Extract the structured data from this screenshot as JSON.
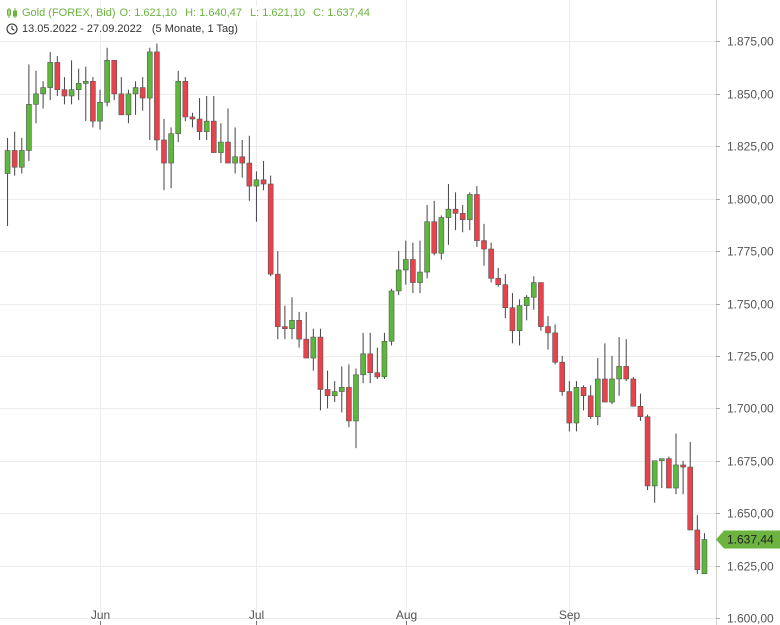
{
  "header": {
    "instrument": "Gold (FOREX, Bid)",
    "open": "O: 1.621,10",
    "high": "H: 1.640,47",
    "low": "L: 1.621,10",
    "close": "C: 1.637,44",
    "range": "13.05.2022 - 27.09.2022",
    "interval": "(5 Monate, 1 Tag)",
    "accent": "#6cb33f"
  },
  "chart_data": {
    "type": "candlestick",
    "title": "Gold (FOREX, Bid)",
    "colors": {
      "up": "#5cb83a",
      "down": "#e8434c",
      "last_price_marker": "#6cb33f",
      "grid": "#ececec",
      "wick": "#444444"
    },
    "ylim": [
      1600,
      1890
    ],
    "y_ticks": [
      1600,
      1625,
      1650,
      1675,
      1700,
      1725,
      1750,
      1775,
      1800,
      1825,
      1850,
      1875
    ],
    "y_tick_labels": [
      "1.600,00",
      "1.625,00",
      "1.650,00",
      "1.675,00",
      "1.700,00",
      "1.725,00",
      "1.750,00",
      "1.775,00",
      "1.800,00",
      "1.825,00",
      "1.850,00",
      "1.875,00"
    ],
    "x_month_labels": [
      {
        "label": "Jun",
        "index": 13
      },
      {
        "label": "Jul",
        "index": 35
      },
      {
        "label": "Aug",
        "index": 56
      },
      {
        "label": "Sep",
        "index": 79
      }
    ],
    "grid": true,
    "last_price": 1637.44,
    "last_price_label": "1.637,44",
    "candles": [
      [
        1812,
        1829,
        1787,
        1823
      ],
      [
        1823,
        1832,
        1811,
        1815
      ],
      [
        1815,
        1829,
        1812,
        1823
      ],
      [
        1823,
        1864,
        1818,
        1845
      ],
      [
        1845,
        1861,
        1836,
        1850
      ],
      [
        1850,
        1856,
        1843,
        1853
      ],
      [
        1853,
        1870,
        1847,
        1865
      ],
      [
        1865,
        1868,
        1849,
        1852
      ],
      [
        1852,
        1858,
        1845,
        1849
      ],
      [
        1849,
        1866,
        1845,
        1852
      ],
      [
        1852,
        1862,
        1847,
        1855
      ],
      [
        1855,
        1863,
        1837,
        1856
      ],
      [
        1856,
        1858,
        1834,
        1837
      ],
      [
        1837,
        1852,
        1833,
        1846
      ],
      [
        1846,
        1872,
        1844,
        1866
      ],
      [
        1866,
        1866,
        1847,
        1850
      ],
      [
        1850,
        1858,
        1840,
        1840
      ],
      [
        1840,
        1852,
        1836,
        1850
      ],
      [
        1850,
        1856,
        1840,
        1853
      ],
      [
        1853,
        1858,
        1842,
        1848
      ],
      [
        1848,
        1872,
        1828,
        1870
      ],
      [
        1870,
        1874,
        1823,
        1828
      ],
      [
        1828,
        1838,
        1804,
        1817
      ],
      [
        1817,
        1834,
        1805,
        1831
      ],
      [
        1831,
        1861,
        1827,
        1856
      ],
      [
        1856,
        1858,
        1837,
        1839
      ],
      [
        1839,
        1841,
        1834,
        1838
      ],
      [
        1838,
        1848,
        1828,
        1832
      ],
      [
        1832,
        1849,
        1828,
        1837
      ],
      [
        1837,
        1849,
        1822,
        1822
      ],
      [
        1822,
        1836,
        1817,
        1827
      ],
      [
        1827,
        1843,
        1817,
        1817
      ],
      [
        1817,
        1834,
        1812,
        1820
      ],
      [
        1820,
        1828,
        1810,
        1817
      ],
      [
        1817,
        1830,
        1799,
        1806
      ],
      [
        1806,
        1813,
        1789,
        1809
      ],
      [
        1809,
        1818,
        1804,
        1807
      ],
      [
        1807,
        1811,
        1763,
        1764
      ],
      [
        1764,
        1775,
        1733,
        1739
      ],
      [
        1739,
        1749,
        1733,
        1738
      ],
      [
        1738,
        1753,
        1733,
        1742
      ],
      [
        1742,
        1746,
        1729,
        1733
      ],
      [
        1733,
        1746,
        1725,
        1724
      ],
      [
        1724,
        1738,
        1718,
        1734
      ],
      [
        1734,
        1738,
        1699,
        1709
      ],
      [
        1709,
        1718,
        1700,
        1706
      ],
      [
        1706,
        1713,
        1703,
        1708
      ],
      [
        1708,
        1720,
        1698,
        1710
      ],
      [
        1710,
        1721,
        1691,
        1694
      ],
      [
        1694,
        1719,
        1681,
        1716
      ],
      [
        1716,
        1736,
        1712,
        1726
      ],
      [
        1726,
        1736,
        1712,
        1717
      ],
      [
        1717,
        1729,
        1714,
        1715
      ],
      [
        1715,
        1736,
        1714,
        1732
      ],
      [
        1732,
        1757,
        1730,
        1756
      ],
      [
        1756,
        1775,
        1754,
        1766
      ],
      [
        1766,
        1780,
        1759,
        1771
      ],
      [
        1771,
        1779,
        1755,
        1760
      ],
      [
        1760,
        1780,
        1755,
        1765
      ],
      [
        1765,
        1797,
        1762,
        1789
      ],
      [
        1789,
        1799,
        1773,
        1774
      ],
      [
        1774,
        1792,
        1771,
        1791
      ],
      [
        1791,
        1807,
        1778,
        1795
      ],
      [
        1795,
        1803,
        1785,
        1793
      ],
      [
        1793,
        1797,
        1784,
        1790
      ],
      [
        1790,
        1803,
        1785,
        1802
      ],
      [
        1802,
        1806,
        1777,
        1780
      ],
      [
        1780,
        1788,
        1768,
        1776
      ],
      [
        1776,
        1779,
        1760,
        1762
      ],
      [
        1762,
        1767,
        1758,
        1759
      ],
      [
        1759,
        1764,
        1743,
        1748
      ],
      [
        1748,
        1755,
        1731,
        1737
      ],
      [
        1737,
        1752,
        1730,
        1749
      ],
      [
        1749,
        1754,
        1742,
        1753
      ],
      [
        1753,
        1763,
        1747,
        1760
      ],
      [
        1760,
        1760,
        1737,
        1739
      ],
      [
        1739,
        1744,
        1728,
        1736
      ],
      [
        1736,
        1740,
        1721,
        1722
      ],
      [
        1722,
        1725,
        1706,
        1708
      ],
      [
        1708,
        1713,
        1689,
        1693
      ],
      [
        1693,
        1713,
        1689,
        1710
      ],
      [
        1710,
        1711,
        1699,
        1706
      ],
      [
        1706,
        1711,
        1695,
        1696
      ],
      [
        1696,
        1724,
        1692,
        1714
      ],
      [
        1714,
        1731,
        1703,
        1703
      ],
      [
        1703,
        1725,
        1702,
        1714
      ],
      [
        1714,
        1734,
        1706,
        1720
      ],
      [
        1720,
        1733,
        1713,
        1714
      ],
      [
        1714,
        1715,
        1701,
        1701
      ],
      [
        1701,
        1707,
        1694,
        1696
      ],
      [
        1696,
        1697,
        1661,
        1663
      ],
      [
        1663,
        1675,
        1655,
        1675
      ],
      [
        1675,
        1676,
        1662,
        1676
      ],
      [
        1676,
        1677,
        1662,
        1662
      ],
      [
        1662,
        1688,
        1659,
        1673
      ],
      [
        1673,
        1675,
        1659,
        1672
      ],
      [
        1672,
        1684,
        1642,
        1642
      ],
      [
        1642,
        1649,
        1621,
        1623
      ],
      [
        1621.1,
        1640.47,
        1621.1,
        1637.44
      ]
    ]
  }
}
